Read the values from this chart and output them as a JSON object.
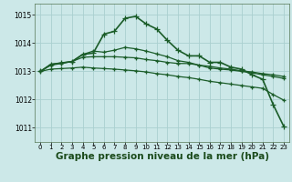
{
  "background_color": "#cce8e8",
  "grid_color": "#aad0d0",
  "line_color": "#1a5c28",
  "xlabel": "Graphe pression niveau de la mer (hPa)",
  "xlabel_fontsize": 7.5,
  "ylim_min": 1010.5,
  "ylim_max": 1015.4,
  "yticks": [
    1011,
    1012,
    1013,
    1014,
    1015
  ],
  "xticks": [
    0,
    1,
    2,
    3,
    4,
    5,
    6,
    7,
    8,
    9,
    10,
    11,
    12,
    13,
    14,
    15,
    16,
    17,
    18,
    19,
    20,
    21,
    22,
    23
  ],
  "series": [
    [
      1013.0,
      1013.25,
      1013.3,
      1013.35,
      1013.6,
      1013.65,
      1014.32,
      1014.42,
      1014.88,
      1014.95,
      1014.68,
      1014.5,
      1014.1,
      1013.75,
      1013.55,
      1013.55,
      1013.32,
      1013.32,
      1013.15,
      1013.08,
      1012.88,
      1012.72,
      1011.82,
      1011.05
    ],
    [
      1013.0,
      1013.25,
      1013.3,
      1013.35,
      1013.6,
      1013.72,
      1013.68,
      1013.75,
      1013.85,
      1013.8,
      1013.72,
      1013.62,
      1013.52,
      1013.38,
      1013.32,
      1013.22,
      1013.12,
      1013.08,
      1013.05,
      1013.0,
      1012.95,
      1012.88,
      1012.82,
      1012.75
    ],
    [
      1013.0,
      1013.08,
      1013.1,
      1013.12,
      1013.15,
      1013.12,
      1013.1,
      1013.08,
      1013.05,
      1013.02,
      1012.98,
      1012.92,
      1012.88,
      1012.82,
      1012.78,
      1012.72,
      1012.65,
      1012.6,
      1012.55,
      1012.5,
      1012.45,
      1012.4,
      1012.18,
      1011.98
    ],
    [
      1013.0,
      1013.22,
      1013.28,
      1013.35,
      1013.5,
      1013.52,
      1013.52,
      1013.52,
      1013.5,
      1013.48,
      1013.42,
      1013.38,
      1013.32,
      1013.28,
      1013.28,
      1013.22,
      1013.18,
      1013.12,
      1013.08,
      1013.02,
      1012.98,
      1012.92,
      1012.88,
      1012.82
    ]
  ]
}
